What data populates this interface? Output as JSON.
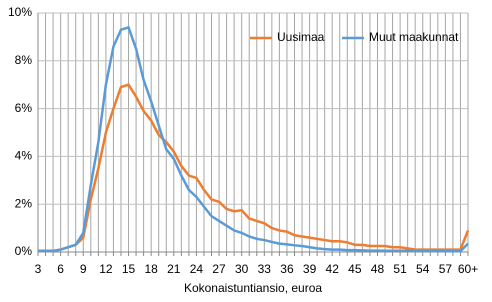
{
  "chart_data": {
    "type": "line",
    "x_label": "Kokonaistuntiansio, euroa",
    "categories": [
      "3",
      null,
      null,
      "6",
      null,
      null,
      "9",
      null,
      null,
      "12",
      null,
      null,
      "15",
      null,
      null,
      "18",
      null,
      null,
      "21",
      null,
      null,
      "24",
      null,
      null,
      "27",
      null,
      null,
      "30",
      null,
      null,
      "33",
      null,
      null,
      "36",
      null,
      null,
      "39",
      null,
      null,
      "42",
      null,
      null,
      "45",
      null,
      null,
      "48",
      null,
      null,
      "51",
      null,
      null,
      "54",
      null,
      null,
      "57",
      null,
      null,
      "60+"
    ],
    "series": [
      {
        "name": "Uusimaa",
        "color": "#ed7d31",
        "values": [
          0.05,
          0.05,
          0.05,
          0.1,
          0.2,
          0.3,
          0.6,
          2.2,
          3.5,
          5,
          6,
          6.9,
          7,
          6.5,
          5.9,
          5.5,
          4.9,
          4.6,
          4.2,
          3.6,
          3.2,
          3.1,
          2.6,
          2.2,
          2.1,
          1.8,
          1.7,
          1.75,
          1.4,
          1.3,
          1.2,
          1.0,
          0.9,
          0.85,
          0.7,
          0.65,
          0.6,
          0.55,
          0.5,
          0.45,
          0.45,
          0.4,
          0.3,
          0.3,
          0.25,
          0.25,
          0.25,
          0.2,
          0.2,
          0.15,
          0.1,
          0.1,
          0.1,
          0.1,
          0.1,
          0.1,
          0.1,
          0.9
        ]
      },
      {
        "name": "Muut maakunnat",
        "color": "#5b9bd5",
        "values": [
          0.05,
          0.05,
          0.05,
          0.1,
          0.2,
          0.3,
          0.8,
          2.8,
          4.6,
          7,
          8.6,
          9.3,
          9.4,
          8.5,
          7.2,
          6.3,
          5.3,
          4.3,
          3.9,
          3.2,
          2.6,
          2.3,
          1.9,
          1.5,
          1.3,
          1.1,
          0.9,
          0.8,
          0.65,
          0.55,
          0.5,
          0.42,
          0.35,
          0.32,
          0.28,
          0.25,
          0.2,
          0.15,
          0.12,
          0.1,
          0.1,
          0.08,
          0.08,
          0.07,
          0.06,
          0.06,
          0.05,
          0.05,
          0.05,
          0.05,
          0.04,
          0.04,
          0.04,
          0.04,
          0.03,
          0.03,
          0.03,
          0.35
        ]
      }
    ],
    "ylim": [
      0,
      10
    ],
    "yticks": [
      {
        "value": 0,
        "label": "0%"
      },
      {
        "value": 2,
        "label": "2%"
      },
      {
        "value": 4,
        "label": "4%"
      },
      {
        "value": 6,
        "label": "6%"
      },
      {
        "value": 8,
        "label": "8%"
      },
      {
        "value": 10,
        "label": "10%"
      }
    ],
    "grid": true,
    "legend": "top-right"
  }
}
